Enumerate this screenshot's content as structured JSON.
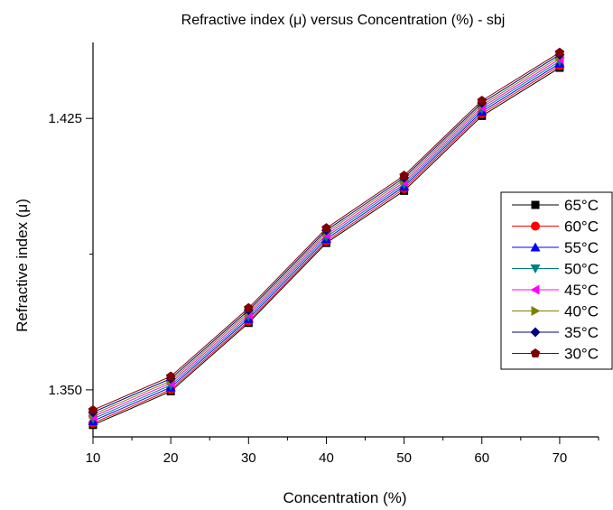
{
  "chart_data": {
    "type": "line",
    "title": "Refractive index (μ) versus Concentration (%) - sbj",
    "xlabel": "Concentration (%)",
    "ylabel": "Refractive index (μ)",
    "xlim": [
      10,
      75
    ],
    "ylim": [
      1.337,
      1.446
    ],
    "x_ticks": [
      10,
      20,
      30,
      40,
      50,
      60,
      70
    ],
    "x_tick_labels": [
      "10",
      "20",
      "30",
      "40",
      "50",
      "60",
      "70"
    ],
    "y_ticks": [
      1.35,
      1.425
    ],
    "y_tick_labels": [
      "1.350",
      "1.425"
    ],
    "x": [
      10,
      20,
      30,
      40,
      50,
      60,
      70
    ],
    "grid": false,
    "legend_position": "right",
    "series": [
      {
        "name": "65°C",
        "color": "#000000",
        "marker": "square",
        "values": [
          1.3403,
          1.3496,
          1.3685,
          1.3906,
          1.405,
          1.4257,
          1.439
        ]
      },
      {
        "name": "60°C",
        "color": "#ff0000",
        "marker": "circle",
        "values": [
          1.3408,
          1.3501,
          1.369,
          1.3911,
          1.4056,
          1.4263,
          1.4396
        ]
      },
      {
        "name": "55°C",
        "color": "#0000ff",
        "marker": "triangle-up",
        "values": [
          1.3414,
          1.3507,
          1.3696,
          1.3917,
          1.4062,
          1.4269,
          1.4402
        ]
      },
      {
        "name": "50°C",
        "color": "#008080",
        "marker": "triangle-down",
        "values": [
          1.342,
          1.3513,
          1.3702,
          1.3923,
          1.4068,
          1.4275,
          1.4408
        ]
      },
      {
        "name": "45°C",
        "color": "#ff00ff",
        "marker": "triangle-left",
        "values": [
          1.3426,
          1.3519,
          1.3708,
          1.3929,
          1.4074,
          1.4281,
          1.4414
        ]
      },
      {
        "name": "40°C",
        "color": "#808000",
        "marker": "triangle-right",
        "values": [
          1.3432,
          1.3525,
          1.3714,
          1.3935,
          1.408,
          1.4287,
          1.442
        ]
      },
      {
        "name": "35°C",
        "color": "#000080",
        "marker": "diamond",
        "values": [
          1.3438,
          1.3531,
          1.372,
          1.3941,
          1.4086,
          1.4293,
          1.4426
        ]
      },
      {
        "name": "30°C",
        "color": "#800000",
        "marker": "pentagon",
        "values": [
          1.3444,
          1.3537,
          1.3726,
          1.3947,
          1.4092,
          1.4299,
          1.4432
        ]
      }
    ]
  }
}
